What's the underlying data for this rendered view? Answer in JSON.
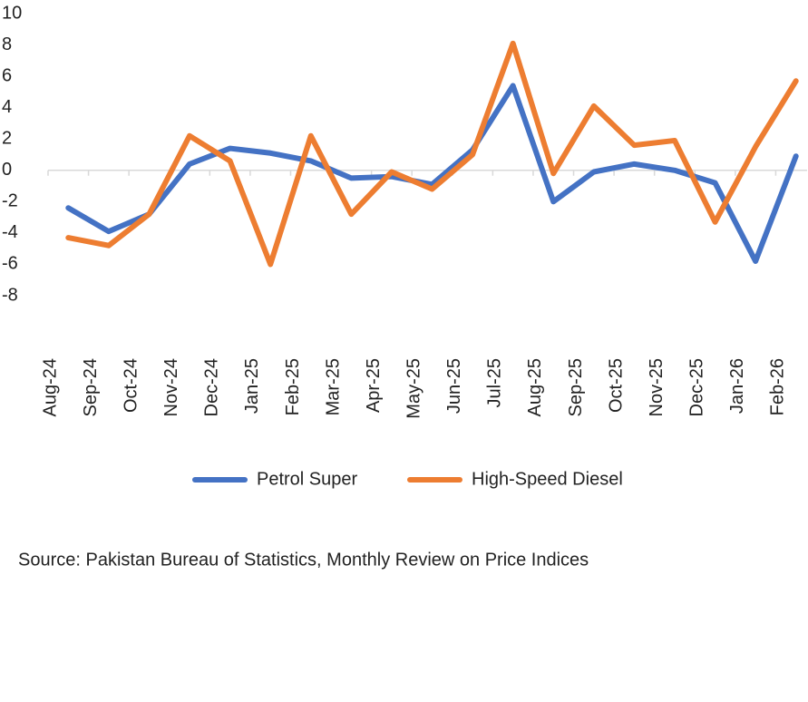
{
  "chart_data": {
    "type": "line",
    "categories": [
      "Aug-24",
      "Sep-24",
      "Oct-24",
      "Nov-24",
      "Dec-24",
      "Jan-25",
      "Feb-25",
      "Mar-25",
      "Apr-25",
      "May-25",
      "Jun-25",
      "Jul-25",
      "Aug-25",
      "Sep-25",
      "Oct-25",
      "Nov-25",
      "Dec-25",
      "Jan-26",
      "Feb-26"
    ],
    "series": [
      {
        "name": "Petrol Super",
        "color": "#4472c4",
        "values": [
          -2.4,
          -3.9,
          -2.8,
          0.4,
          1.4,
          1.1,
          0.6,
          -0.5,
          -0.4,
          -0.9,
          1.3,
          5.4,
          -2.0,
          -0.1,
          0.4,
          0.0,
          -0.8,
          -5.8,
          0.9
        ]
      },
      {
        "name": "High-Speed Diesel",
        "color": "#ed7d31",
        "values": [
          -4.3,
          -4.8,
          -2.8,
          2.2,
          0.6,
          -6.0,
          2.2,
          -2.8,
          -0.1,
          -1.2,
          1.0,
          8.1,
          -0.2,
          4.1,
          1.6,
          1.9,
          -3.3,
          1.5,
          5.7
        ]
      }
    ],
    "ylim": [
      -8,
      10
    ],
    "yticks": [
      10,
      8,
      6,
      4,
      2,
      0,
      -2,
      -4,
      -6,
      -8
    ],
    "legend": "bottom",
    "source": "Source: Pakistan Bureau of Statistics, Monthly Review on Price Indices"
  }
}
